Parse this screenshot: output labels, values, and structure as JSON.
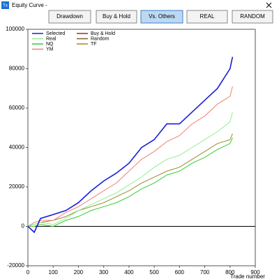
{
  "window": {
    "title": "Equity Curve -",
    "icon": "Tx"
  },
  "buttons": [
    "Drawdown",
    "Buy & Hold",
    "Vs. Others",
    "REAL",
    "RANDOM"
  ],
  "chart_data": {
    "type": "line",
    "x_label": "Trade number",
    "x": [
      0,
      25,
      50,
      100,
      150,
      200,
      250,
      300,
      350,
      400,
      450,
      500,
      550,
      600,
      650,
      700,
      750,
      800,
      810
    ],
    "xlim": [
      0,
      900
    ],
    "xticks": [
      0,
      100,
      200,
      300,
      400,
      500,
      600,
      700,
      800,
      900
    ],
    "ylim": [
      -20000,
      100000
    ],
    "yticks": [
      -20000,
      0,
      20000,
      40000,
      60000,
      80000,
      100000
    ],
    "series": [
      {
        "name": "Selected",
        "color": "#1a1adc",
        "values": [
          0,
          -3000,
          4000,
          6000,
          8000,
          12000,
          18000,
          23000,
          27000,
          32000,
          40000,
          44000,
          52000,
          52000,
          58000,
          64000,
          70000,
          80000,
          86000
        ]
      },
      {
        "name": "Buy & Hold",
        "color": "#a52a2a",
        "values": [
          null,
          null,
          null,
          null,
          null,
          null,
          null,
          null,
          null,
          null,
          null,
          null,
          null,
          null,
          null,
          null,
          null,
          null,
          null
        ]
      },
      {
        "name": "Real",
        "color": "#90ee90",
        "values": [
          0,
          1000,
          2000,
          1000,
          4000,
          8000,
          11000,
          14000,
          17000,
          21000,
          25000,
          30000,
          34000,
          36000,
          40000,
          44000,
          48000,
          53000,
          58000
        ]
      },
      {
        "name": "Random",
        "color": "#8b5a2b",
        "values": [
          null,
          null,
          null,
          null,
          null,
          null,
          null,
          null,
          null,
          null,
          null,
          null,
          null,
          null,
          null,
          null,
          null,
          null,
          null
        ]
      },
      {
        "name": "NQ",
        "color": "#32cd32",
        "values": [
          0,
          0,
          1000,
          0,
          3000,
          5000,
          8000,
          10000,
          12000,
          15000,
          19000,
          22000,
          26000,
          28000,
          32000,
          35000,
          39000,
          42000,
          45000
        ]
      },
      {
        "name": "TF",
        "color": "#9a8a2a",
        "values": [
          0,
          1000,
          2000,
          3000,
          5000,
          8000,
          10000,
          12000,
          15000,
          18000,
          22000,
          25000,
          28000,
          30000,
          34000,
          38000,
          42000,
          44000,
          47000
        ]
      },
      {
        "name": "YM",
        "color": "#f08070",
        "values": [
          0,
          2000,
          3000,
          3000,
          7000,
          10000,
          14000,
          18000,
          22000,
          28000,
          34000,
          38000,
          43000,
          46000,
          52000,
          56000,
          62000,
          66000,
          71000
        ]
      }
    ]
  }
}
